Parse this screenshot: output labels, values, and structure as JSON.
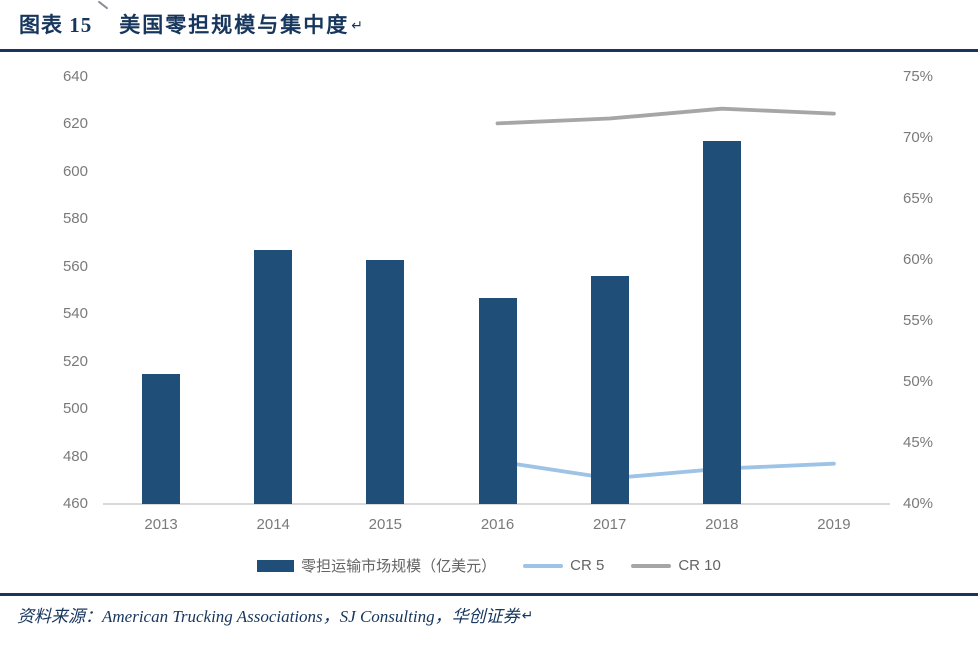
{
  "header": {
    "figure_label": "图表 15",
    "title": "美国零担规模与集中度",
    "return_mark": "↵"
  },
  "footer": {
    "source_text": "资料来源：American Trucking Associations，SJ Consulting，华创证券"
  },
  "colors": {
    "title_navy": "#17365D",
    "bar_fill": "#1F4E79",
    "cr5_line": "#9DC3E6",
    "cr10_line": "#A6A6A6",
    "axis_text": "#7a7a7a",
    "axis_line": "#D9D9D9"
  },
  "chart_data": {
    "type": "combo",
    "title": "图表 15 美国零担规模与集中度",
    "categories": [
      "2013",
      "2014",
      "2015",
      "2016",
      "2017",
      "2018",
      "2019"
    ],
    "series": [
      {
        "name": "零担运输市场规模（亿美元）",
        "type": "bar",
        "axis": "left",
        "color": "#1F4E79",
        "values": [
          515,
          567,
          563,
          547,
          556,
          613,
          null
        ]
      },
      {
        "name": "CR 5",
        "type": "line",
        "axis": "right",
        "color": "#9DC3E6",
        "values": [
          null,
          null,
          null,
          43.5,
          42.1,
          42.9,
          43.3
        ]
      },
      {
        "name": "CR 10",
        "type": "line",
        "axis": "right",
        "color": "#A6A6A6",
        "values": [
          null,
          null,
          null,
          71.2,
          71.6,
          72.4,
          72
        ]
      }
    ],
    "left_axis": {
      "min": 460,
      "max": 640,
      "step": 20,
      "ticks": [
        "460",
        "480",
        "500",
        "520",
        "540",
        "560",
        "580",
        "600",
        "620",
        "640"
      ]
    },
    "right_axis": {
      "min": 40,
      "max": 75,
      "step": 5,
      "ticks": [
        "40%",
        "45%",
        "50%",
        "55%",
        "60%",
        "65%",
        "70%",
        "75%"
      ]
    },
    "grid": false,
    "legend_position": "bottom"
  }
}
